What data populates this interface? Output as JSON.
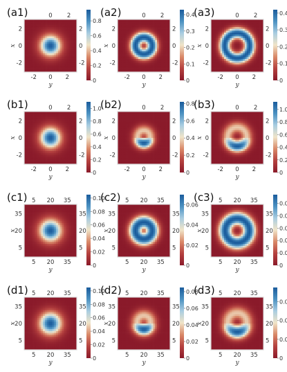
{
  "figure": {
    "colormap_stops": [
      "#8a1a2a",
      "#b5413f",
      "#d98868",
      "#f0e4c8",
      "#a9cde1",
      "#4c92c2",
      "#1b5c9c"
    ],
    "frame_color": "#d9d9d9",
    "panels": [
      {
        "label": "(a1)",
        "xlabel": "x",
        "ylabel": "y",
        "ticks": [
          "-2",
          "0",
          "2"
        ],
        "ticks_top": [
          "0",
          "2"
        ],
        "ticks_right": [
          "2",
          "0",
          "-2"
        ],
        "ticks_bottom": [
          "-2",
          "0",
          "2"
        ],
        "ticks_left": [
          "2",
          "0",
          "-2"
        ],
        "colorbar_ticks": [
          "0.8",
          "0.6",
          "0.4",
          "0.2",
          "0"
        ],
        "colorbar_max": 0.95,
        "pattern": "gaussian",
        "ring_radius": 0.0,
        "width": 0.14,
        "center": [
          0.5,
          0.5
        ]
      },
      {
        "label": "(a2)",
        "xlabel": "x",
        "ylabel": "y",
        "ticks_top": [
          "0",
          "2"
        ],
        "ticks_right": [
          "2",
          "0",
          "-2"
        ],
        "ticks_bottom": [
          "-2",
          "0",
          "2"
        ],
        "ticks_left": [
          "2",
          "0",
          "-2"
        ],
        "colorbar_ticks": [
          "0.4",
          "0.3",
          "0.2",
          "0.1",
          "0"
        ],
        "colorbar_max": 0.43,
        "pattern": "ring",
        "ring_radius": 0.16,
        "width": 0.075,
        "center": [
          0.5,
          0.5
        ]
      },
      {
        "label": "(a3)",
        "xlabel": "x",
        "ylabel": "y",
        "ticks_top": [
          "0",
          "2"
        ],
        "ticks_right": [
          "2",
          "0",
          "-2"
        ],
        "ticks_bottom": [
          "-2",
          "0",
          "2"
        ],
        "ticks_left": [
          "2",
          "0",
          "-2"
        ],
        "colorbar_ticks": [
          "0.4",
          "0.3",
          "0.2",
          "0.1",
          "0"
        ],
        "colorbar_max": 0.42,
        "pattern": "ring",
        "ring_radius": 0.24,
        "width": 0.075,
        "center": [
          0.5,
          0.5
        ]
      },
      {
        "label": "(b1)",
        "xlabel": "x",
        "ylabel": "y",
        "ticks_top": [
          "0",
          "2"
        ],
        "ticks_right": [
          "2",
          "0",
          "-2"
        ],
        "ticks_bottom": [
          "-2",
          "0",
          "2"
        ],
        "ticks_left": [
          "2",
          "0",
          "-2"
        ],
        "colorbar_ticks": [
          "1.0",
          "0.8",
          "0.6",
          "0.4",
          "0.2",
          "0"
        ],
        "colorbar_max": 1.1,
        "pattern": "gaussian",
        "ring_radius": 0.0,
        "width": 0.14,
        "center": [
          0.5,
          0.5
        ]
      },
      {
        "label": "(b2)",
        "xlabel": "x",
        "ylabel": "y",
        "ticks_top": [
          "0",
          "2"
        ],
        "ticks_right": [
          "2",
          "0",
          "-2"
        ],
        "ticks_bottom": [
          "-2",
          "0",
          "2"
        ],
        "ticks_left": [
          "2",
          "0",
          "-2"
        ],
        "colorbar_ticks": [
          "0.8",
          "0.6",
          "0.4",
          "0.2",
          "0"
        ],
        "colorbar_max": 0.82,
        "pattern": "crescent",
        "ring_radius": 0.12,
        "width": 0.075,
        "center": [
          0.5,
          0.48
        ]
      },
      {
        "label": "(b3)",
        "xlabel": "x",
        "ylabel": "y",
        "ticks_top": [
          "0",
          "2"
        ],
        "ticks_right": [
          "2",
          "0",
          "-2"
        ],
        "ticks_bottom": [
          "-2",
          "0",
          "2"
        ],
        "ticks_left": [
          "2",
          "0",
          "-2"
        ],
        "colorbar_ticks": [
          "1.0",
          "0.8",
          "0.6",
          "0.4",
          "0.2",
          "0"
        ],
        "colorbar_max": 1.12,
        "pattern": "crescent",
        "ring_radius": 0.18,
        "width": 0.08,
        "center": [
          0.5,
          0.48
        ]
      },
      {
        "label": "(c1)",
        "xlabel": "x",
        "ylabel": "y",
        "ticks_top": [
          "5",
          "20",
          "35"
        ],
        "ticks_right": [
          "35",
          "20",
          "5"
        ],
        "ticks_bottom": [
          "5",
          "20",
          "35"
        ],
        "ticks_left": [
          "35",
          "20",
          "5"
        ],
        "colorbar_ticks": [
          "0.10",
          "0.08",
          "0.06",
          "0.04",
          "0.02",
          "0"
        ],
        "colorbar_max": 0.105,
        "pattern": "gaussian",
        "ring_radius": 0.0,
        "width": 0.15,
        "center": [
          0.5,
          0.5
        ]
      },
      {
        "label": "(c2)",
        "xlabel": "x",
        "ylabel": "y",
        "ticks_top": [
          "5",
          "20",
          "35"
        ],
        "ticks_right": [
          "35",
          "20",
          "5"
        ],
        "ticks_bottom": [
          "5",
          "20",
          "35"
        ],
        "ticks_left": [
          "35",
          "20",
          "5"
        ],
        "colorbar_ticks": [
          "0.06",
          "0.04",
          "0.02",
          "0"
        ],
        "colorbar_max": 0.07,
        "pattern": "ring",
        "ring_radius": 0.16,
        "width": 0.09,
        "center": [
          0.5,
          0.5
        ]
      },
      {
        "label": "(c3)",
        "xlabel": "x",
        "ylabel": "y",
        "ticks_top": [
          "5",
          "20",
          "35"
        ],
        "ticks_right": [
          "35",
          "20",
          "5"
        ],
        "ticks_bottom": [
          "5",
          "20",
          "35"
        ],
        "ticks_left": [
          "35",
          "20",
          "5"
        ],
        "colorbar_ticks": [
          "0.05",
          "0.04",
          "0.03",
          "0.02",
          "0.01",
          "0"
        ],
        "colorbar_max": 0.057,
        "pattern": "ring",
        "ring_radius": 0.23,
        "width": 0.09,
        "center": [
          0.5,
          0.5
        ]
      },
      {
        "label": "(d1)",
        "xlabel": "x",
        "ylabel": "y",
        "ticks_top": [
          "5",
          "20",
          "35"
        ],
        "ticks_right": [
          "35",
          "20",
          "5"
        ],
        "ticks_bottom": [
          "5",
          "20",
          "35"
        ],
        "ticks_left": [
          "35",
          "20",
          "5"
        ],
        "colorbar_ticks": [
          "0.10",
          "0.08",
          "0.06",
          "0.04",
          "0.02",
          "0"
        ],
        "colorbar_max": 0.105,
        "pattern": "gaussian",
        "ring_radius": 0.0,
        "width": 0.15,
        "center": [
          0.5,
          0.5
        ]
      },
      {
        "label": "(d2)",
        "xlabel": "x",
        "ylabel": "y",
        "ticks_top": [
          "5",
          "20",
          "35"
        ],
        "ticks_right": [
          "35",
          "20",
          "5"
        ],
        "ticks_bottom": [
          "5",
          "20",
          "35"
        ],
        "ticks_left": [
          "35",
          "20",
          "5"
        ],
        "colorbar_ticks": [
          "0.08",
          "0.06",
          "0.04",
          "0.02",
          "0"
        ],
        "colorbar_max": 0.085,
        "pattern": "crescent",
        "ring_radius": 0.13,
        "width": 0.085,
        "center": [
          0.5,
          0.48
        ]
      },
      {
        "label": "(d3)",
        "xlabel": "x",
        "ylabel": "y",
        "ticks_top": [
          "5",
          "20",
          "35"
        ],
        "ticks_right": [
          "35",
          "20",
          "5"
        ],
        "ticks_bottom": [
          "5",
          "20",
          "35"
        ],
        "ticks_left": [
          "35",
          "20",
          "5"
        ],
        "colorbar_ticks": [
          "0.06",
          "0.04",
          "0.02",
          "0"
        ],
        "colorbar_max": 0.075,
        "pattern": "crescent",
        "ring_radius": 0.18,
        "width": 0.09,
        "center": [
          0.5,
          0.48
        ]
      }
    ]
  }
}
